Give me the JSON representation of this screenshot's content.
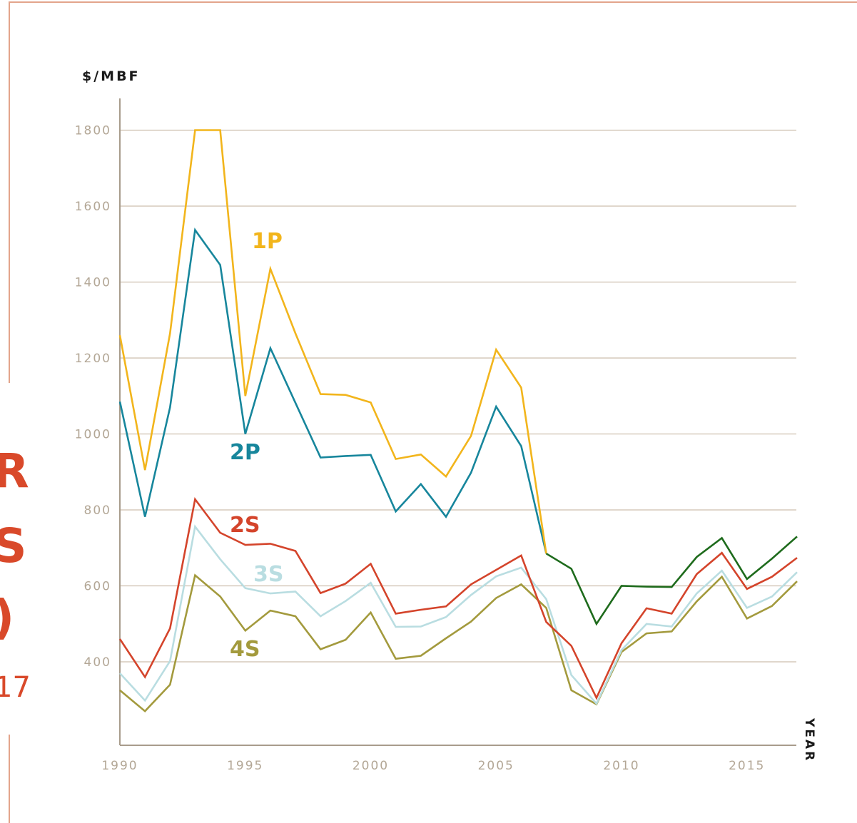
{
  "side_text": {
    "letters": [
      "R",
      "S",
      ")"
    ],
    "small": "17"
  },
  "colors": {
    "frame": "#e3a58c",
    "side_text": "#d9492a",
    "grid": "#cdbfae",
    "axis": "#a89c8c",
    "tick_text": "#b3a796"
  },
  "chart_data": {
    "type": "line",
    "ylabel": "$/MBF",
    "xlabel": "YEAR",
    "xlim": [
      1990,
      2017
    ],
    "ylim": [
      215,
      1870
    ],
    "y_ticks": [
      400,
      600,
      800,
      1000,
      1200,
      1400,
      1600,
      1800
    ],
    "x_ticks": [
      1990,
      1995,
      2000,
      2005,
      2010,
      2015
    ],
    "grid": "horizontal",
    "x": [
      1990,
      1991,
      1992,
      1993,
      1994,
      1995,
      1996,
      1997,
      1998,
      1999,
      2000,
      2001,
      2002,
      2003,
      2004,
      2005,
      2006,
      2007,
      2008,
      2009,
      2010,
      2011,
      2012,
      2013,
      2014,
      2015,
      2016,
      2017
    ],
    "series": [
      {
        "name": "1P",
        "color": "#f2b51c",
        "values": [
          1260,
          905,
          1265,
          1800,
          1800,
          1100,
          1435,
          1265,
          1105,
          1103,
          1083,
          934,
          946,
          888,
          995,
          1222,
          1122,
          685,
          null,
          null,
          null,
          null,
          null,
          null,
          null,
          null,
          null,
          null
        ]
      },
      {
        "name": "2P",
        "color": "#17869c",
        "values": [
          1085,
          782,
          1070,
          1537,
          1445,
          1000,
          1226,
          1082,
          938,
          942,
          945,
          796,
          868,
          782,
          898,
          1072,
          968,
          685,
          null,
          null,
          null,
          null,
          null,
          null,
          null,
          null,
          null,
          null
        ]
      },
      {
        "name": "",
        "color": "#1e6b1c",
        "values": [
          null,
          null,
          null,
          null,
          null,
          null,
          null,
          null,
          null,
          null,
          null,
          null,
          null,
          null,
          null,
          null,
          null,
          685,
          645,
          500,
          600,
          598,
          597,
          676,
          726,
          618,
          672,
          730
        ]
      },
      {
        "name": "2S",
        "color": "#d4442b",
        "values": [
          460,
          360,
          488,
          828,
          740,
          708,
          711,
          692,
          581,
          606,
          658,
          527,
          537,
          546,
          604,
          642,
          680,
          505,
          442,
          305,
          449,
          541,
          527,
          631,
          687,
          592,
          624,
          674
        ]
      },
      {
        "name": "3S",
        "color": "#b9dde1",
        "values": [
          370,
          298,
          402,
          756,
          670,
          594,
          580,
          585,
          520,
          560,
          608,
          492,
          493,
          518,
          576,
          625,
          648,
          565,
          365,
          290,
          431,
          500,
          493,
          580,
          640,
          542,
          572,
          636
        ]
      },
      {
        "name": "4S",
        "color": "#a39a3d",
        "values": [
          325,
          270,
          340,
          628,
          572,
          482,
          535,
          520,
          433,
          458,
          530,
          408,
          416,
          462,
          506,
          568,
          604,
          542,
          325,
          288,
          426,
          475,
          480,
          559,
          624,
          514,
          547,
          612
        ]
      }
    ]
  }
}
